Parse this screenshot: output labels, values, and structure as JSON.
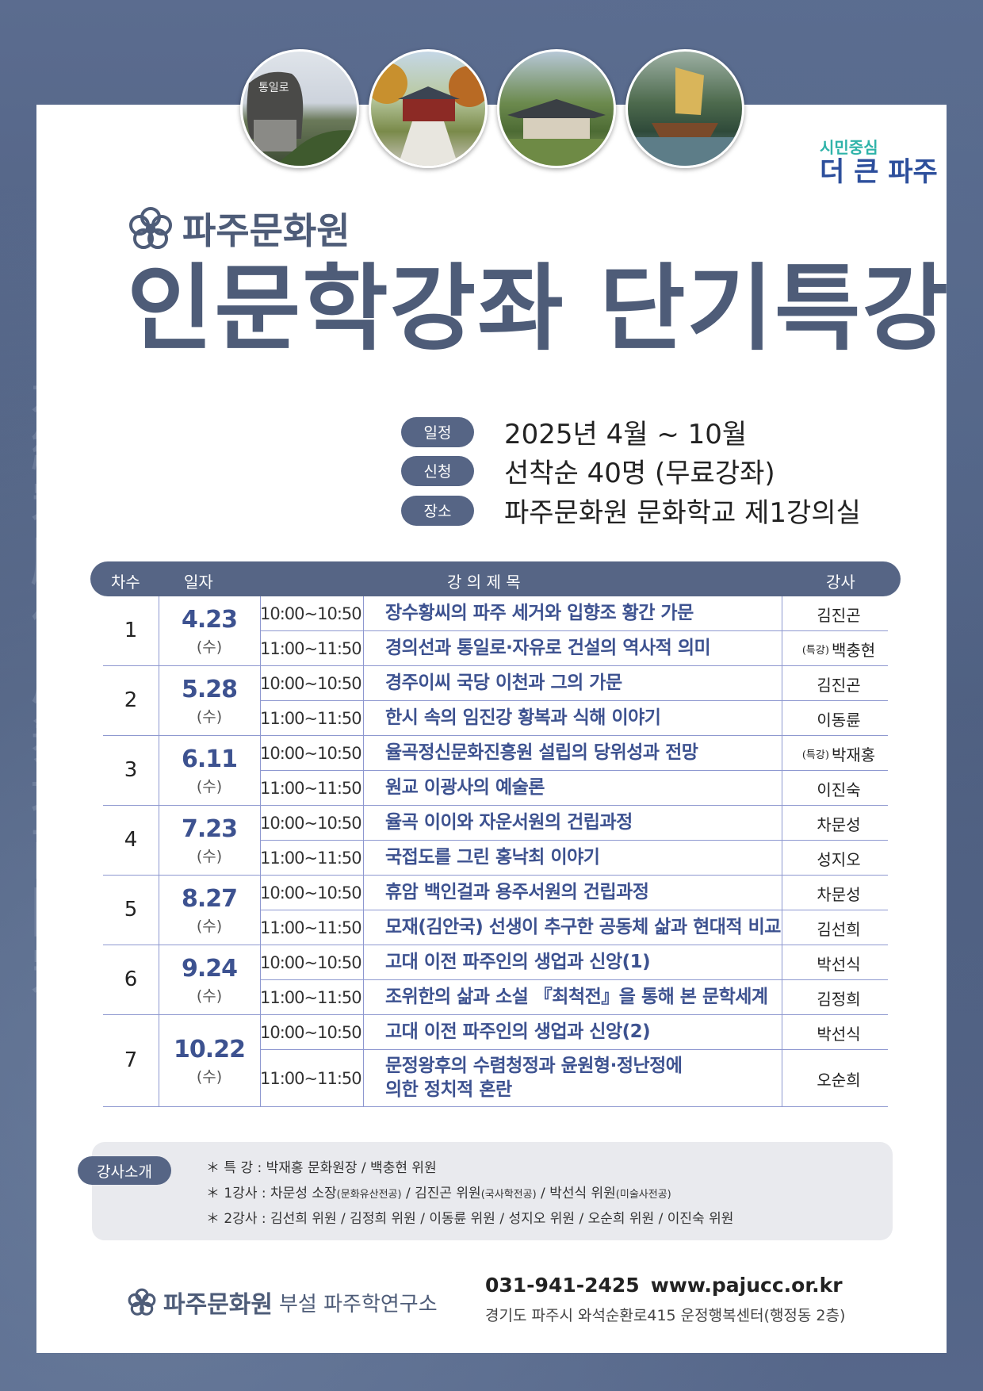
{
  "header": {
    "slogan_line1": "시민중심",
    "slogan_line2": "더 큰 파주",
    "org_name": "파주문화원",
    "main_title": "인문학강좌 단기특강",
    "photos": [
      "memorial-stone",
      "shrine-gate",
      "hanok-house",
      "sailing-ship"
    ],
    "photo_stone_text": "통일로"
  },
  "info": [
    {
      "label": "일정",
      "value": "2025년 4월 ~ 10월"
    },
    {
      "label": "신청",
      "value": "선착순 40명 (무료강좌)"
    },
    {
      "label": "장소",
      "value": "파주문화원 문화학교 제1강의실"
    }
  ],
  "table": {
    "headers": {
      "round": "차수",
      "date": "일자",
      "title": "강 의 제 목",
      "instructor": "강사"
    },
    "groups": [
      {
        "round": "1",
        "date": "4.23",
        "weekday": "(수)",
        "sessions": [
          {
            "time": "10:00~10:50",
            "title": "장수황씨의 파주 세거와 입향조 황간 가문",
            "tag": "",
            "instructor": "김진곤"
          },
          {
            "time": "11:00~11:50",
            "title": "경의선과 통일로·자유로 건설의 역사적 의미",
            "tag": "(특강)",
            "instructor": "백충현"
          }
        ]
      },
      {
        "round": "2",
        "date": "5.28",
        "weekday": "(수)",
        "sessions": [
          {
            "time": "10:00~10:50",
            "title": "경주이씨 국당 이천과 그의 가문",
            "tag": "",
            "instructor": "김진곤"
          },
          {
            "time": "11:00~11:50",
            "title": "한시 속의 임진강 황복과 식해 이야기",
            "tag": "",
            "instructor": "이동륜"
          }
        ]
      },
      {
        "round": "3",
        "date": "6.11",
        "weekday": "(수)",
        "sessions": [
          {
            "time": "10:00~10:50",
            "title": "율곡정신문화진흥원 설립의 당위성과 전망",
            "tag": "(특강)",
            "instructor": "박재홍"
          },
          {
            "time": "11:00~11:50",
            "title": "원교 이광사의 예술론",
            "tag": "",
            "instructor": "이진숙"
          }
        ]
      },
      {
        "round": "4",
        "date": "7.23",
        "weekday": "(수)",
        "sessions": [
          {
            "time": "10:00~10:50",
            "title": "율곡 이이와 자운서원의 건립과정",
            "tag": "",
            "instructor": "차문성"
          },
          {
            "time": "11:00~11:50",
            "title": "국접도를 그린 홍낙최 이야기",
            "tag": "",
            "instructor": "성지오"
          }
        ]
      },
      {
        "round": "5",
        "date": "8.27",
        "weekday": "(수)",
        "sessions": [
          {
            "time": "10:00~10:50",
            "title": "휴암 백인걸과 용주서원의 건립과정",
            "tag": "",
            "instructor": "차문성"
          },
          {
            "time": "11:00~11:50",
            "title": "모재(김안국) 선생이 추구한 공동체 삶과 현대적 비교",
            "tag": "",
            "instructor": "김선희"
          }
        ]
      },
      {
        "round": "6",
        "date": "9.24",
        "weekday": "(수)",
        "sessions": [
          {
            "time": "10:00~10:50",
            "title": "고대 이전 파주인의 생업과 신앙(1)",
            "tag": "",
            "instructor": "박선식"
          },
          {
            "time": "11:00~11:50",
            "title": "조위한의 삶과 소설 『최척전』을 통해 본 문학세계",
            "tag": "",
            "instructor": "김정희"
          }
        ]
      },
      {
        "round": "7",
        "date": "10.22",
        "weekday": "(수)",
        "sessions": [
          {
            "time": "10:00~10:50",
            "title": "고대 이전 파주인의 생업과 신앙(2)",
            "tag": "",
            "instructor": "박선식"
          },
          {
            "time": "11:00~11:50",
            "title": "문정왕후의 수렴청정과 윤원형·정난정에 의한 정치적 혼란",
            "tag": "",
            "instructor": "오순희"
          }
        ]
      }
    ]
  },
  "intro": {
    "label": "강사소개",
    "lines": [
      {
        "prefix": "＊ 특 강 : ",
        "parts": [
          {
            "name": "박재홍 문화원장",
            "note": ""
          },
          {
            "name": " / 백충현 위원",
            "note": ""
          }
        ]
      },
      {
        "prefix": "＊ 1강사 : ",
        "parts": [
          {
            "name": "차문성 소장",
            "note": "(문화유산전공)"
          },
          {
            "name": " / 김진곤 위원",
            "note": "(국사학전공)"
          },
          {
            "name": " / 박선식 위원",
            "note": "(미술사전공)"
          }
        ]
      },
      {
        "prefix": "＊ 2강사 : ",
        "parts": [
          {
            "name": "김선희 위원 / 김정희 위원 / 이동륜 위원 / 성지오 위원 / 오순희 위원 / 이진숙 위원",
            "note": ""
          }
        ]
      }
    ]
  },
  "footer": {
    "org": "파주문화원",
    "sub": "부설 파주학연구소",
    "phone": "031-941-2425",
    "url": "www.pajucc.or.kr",
    "address": "경기도 파주시 와석순환로415 운정행복센터(행정동 2층)"
  },
  "colors": {
    "navy": "#566585",
    "title": "#4e5c78",
    "row_text": "#3d5290",
    "line": "#8e98d0",
    "slogan_teal": "#2fb3a9",
    "slogan_blue": "#2d4f9c"
  }
}
